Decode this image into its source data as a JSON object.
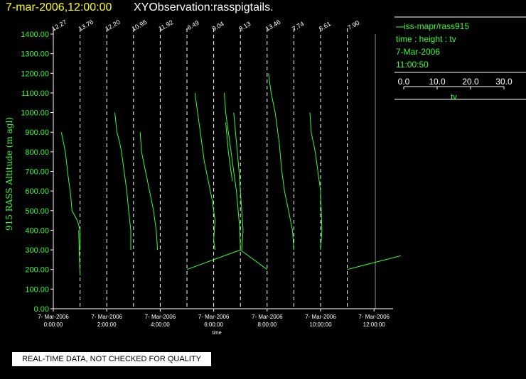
{
  "header": {
    "date_time": "7-mar-2006,12:00:00",
    "observation": "XYObservation:rasspigtails."
  },
  "legend": {
    "series_label": "iss-mapr/rass915",
    "axes": "time : height : tv",
    "date": "7-Mar-2006",
    "time": "11:00:50",
    "scale_ticks": [
      "0.0",
      "10.0",
      "20.0",
      "30.0"
    ],
    "scale_label": "tv"
  },
  "footer": {
    "quality_note": "REAL-TIME DATA, NOT CHECKED FOR QUALITY"
  },
  "colors": {
    "data": "#33ff33",
    "axis": "#ffffff",
    "title_date": "#ffff00",
    "background": "#000000"
  },
  "chart_data": {
    "type": "line",
    "title": "7-mar-2006,12:00:00 XYObservation:rasspigtails.",
    "ylabel": "915 RASS Altitude (m agl)",
    "xlabel": "time",
    "ylim": [
      0,
      1400
    ],
    "yticks": [
      "0.00",
      "100.00",
      "200.00",
      "300.00",
      "400.00",
      "500.00",
      "600.00",
      "700.00",
      "800.00",
      "900.00",
      "1000.00",
      "1100.00",
      "1200.00",
      "1300.00",
      "1400.00"
    ],
    "xlim": [
      0,
      13
    ],
    "xticks": [
      {
        "h": 0,
        "date": "7- Mar-2006",
        "time": "0:00:00"
      },
      {
        "h": 2,
        "date": "7- Mar-2006",
        "time": "2:00:00"
      },
      {
        "h": 4,
        "date": "7- Mar-2006",
        "time": "4:00:00"
      },
      {
        "h": 6,
        "date": "7- Mar-2006",
        "time": "6:00:00"
      },
      {
        "h": 8,
        "date": "7- Mar-2006",
        "time": "8:00:00"
      },
      {
        "h": 10,
        "date": "7- Mar-2006",
        "time": "10:00:00"
      },
      {
        "h": 12,
        "date": "7- Mar-2006",
        "time": "12:00:00"
      }
    ],
    "profiles": [
      {
        "h": 0,
        "label": "12.27",
        "segments": [
          [
            [
              0.3,
              900
            ],
            [
              0.45,
              800
            ],
            [
              0.55,
              680
            ],
            [
              0.65,
              580
            ],
            [
              0.7,
              500
            ],
            [
              0.9,
              450
            ],
            [
              1.0,
              400
            ],
            [
              1.0,
              300
            ]
          ]
        ]
      },
      {
        "h": 1,
        "label": "13.76",
        "segments": [
          [
            [
              0.95,
              400
            ],
            [
              0.97,
              300
            ],
            [
              1.0,
              170
            ]
          ]
        ]
      },
      {
        "h": 2,
        "label": "12.20",
        "segments": [
          [
            [
              2.3,
              1000
            ],
            [
              2.38,
              900
            ],
            [
              2.48,
              850
            ],
            [
              2.55,
              800
            ],
            [
              2.65,
              700
            ],
            [
              2.75,
              600
            ],
            [
              2.82,
              500
            ],
            [
              2.9,
              400
            ],
            [
              2.9,
              300
            ]
          ]
        ]
      },
      {
        "h": 3,
        "label": "10.95",
        "segments": [
          [
            [
              3.25,
              900
            ],
            [
              3.3,
              800
            ],
            [
              3.45,
              700
            ],
            [
              3.6,
              600
            ],
            [
              3.75,
              500
            ],
            [
              3.85,
              400
            ],
            [
              3.9,
              300
            ]
          ]
        ]
      },
      {
        "h": 4,
        "label": "11.92",
        "segments": []
      },
      {
        "h": 5,
        "label": "-6.49",
        "segments": [
          [
            [
              5.3,
              1100
            ],
            [
              5.4,
              1000
            ],
            [
              5.55,
              850
            ],
            [
              5.65,
              750
            ],
            [
              5.8,
              650
            ],
            [
              5.95,
              550
            ],
            [
              6.05,
              450
            ],
            [
              6.0,
              350
            ],
            [
              6.05,
              300
            ]
          ]
        ]
      },
      {
        "h": 6,
        "label": "9.04",
        "segments": [
          [
            [
              6.4,
              1100
            ],
            [
              6.45,
              1000
            ],
            [
              6.6,
              850
            ],
            [
              6.7,
              750
            ],
            [
              6.85,
              600
            ],
            [
              6.95,
              450
            ],
            [
              6.98,
              400
            ],
            [
              7.0,
              300
            ]
          ],
          [
            [
              6.45,
              950
            ],
            [
              6.55,
              800
            ],
            [
              6.65,
              700
            ],
            [
              6.7,
              650
            ]
          ],
          [
            [
              6.75,
              1000
            ],
            [
              6.85,
              850
            ],
            [
              6.95,
              700
            ],
            [
              7.0,
              600
            ],
            [
              7.05,
              500
            ],
            [
              7.1,
              400
            ],
            [
              7.05,
              300
            ]
          ]
        ]
      },
      {
        "h": 7,
        "label": "9.13",
        "segments": [
          [
            [
              5.0,
              200
            ],
            [
              6.0,
              250
            ],
            [
              7.0,
              300
            ]
          ],
          [
            [
              7.0,
              300
            ],
            [
              8.0,
              200
            ]
          ]
        ]
      },
      {
        "h": 8,
        "label": "13.46",
        "segments": [
          [
            [
              8.05,
              1200
            ],
            [
              8.15,
              1100
            ],
            [
              8.3,
              1000
            ],
            [
              8.45,
              850
            ],
            [
              8.55,
              700
            ],
            [
              8.65,
              600
            ],
            [
              8.8,
              500
            ],
            [
              8.95,
              400
            ],
            [
              9.0,
              300
            ]
          ]
        ]
      },
      {
        "h": 9,
        "label": "7.74",
        "segments": []
      },
      {
        "h": 10,
        "label": "6.61",
        "segments": [
          [
            [
              9.6,
              1000
            ],
            [
              9.65,
              900
            ],
            [
              9.8,
              800
            ],
            [
              9.9,
              700
            ],
            [
              10.0,
              600
            ],
            [
              10.05,
              400
            ],
            [
              10.0,
              300
            ]
          ]
        ]
      },
      {
        "h": 11,
        "label": "-7.90",
        "segments": [
          [
            [
              11.0,
              200
            ],
            [
              12.0,
              235
            ],
            [
              13.0,
              270
            ]
          ]
        ]
      }
    ]
  }
}
